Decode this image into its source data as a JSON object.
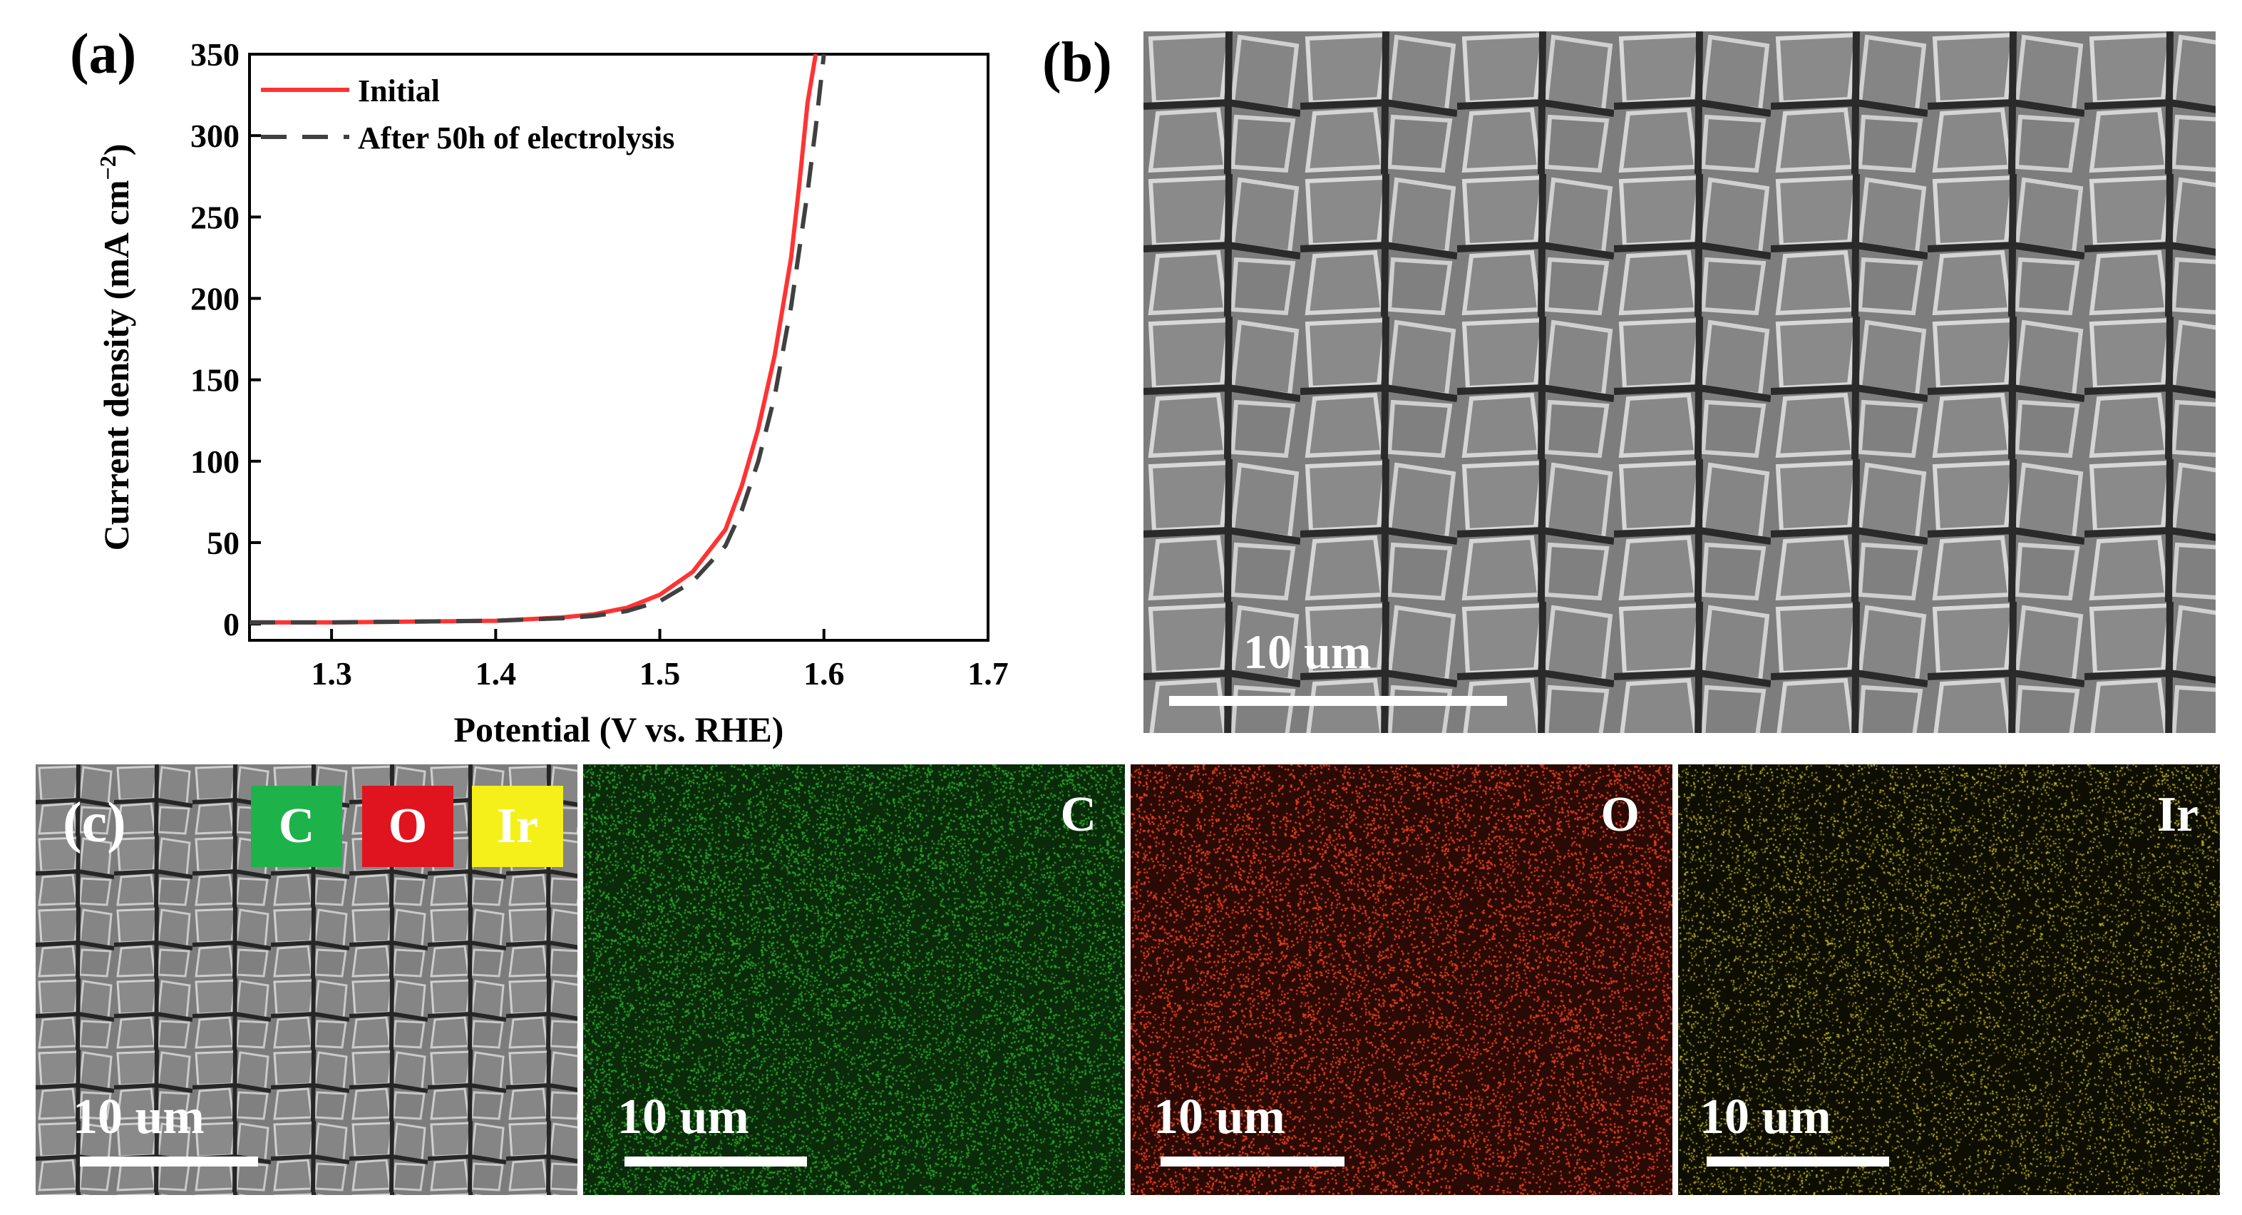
{
  "panels": {
    "a_label": "(a)",
    "b_label": "(b)",
    "c_label": "(c)"
  },
  "chart_data": {
    "type": "line",
    "xlabel": "Potential (V vs. RHE)",
    "ylabel": "Current density (mA cm",
    "ylabel_sup": "−2",
    "ylabel_close": ")",
    "xlim": [
      1.25,
      1.7
    ],
    "ylim": [
      -10,
      350
    ],
    "xticks": [
      1.3,
      1.4,
      1.5,
      1.6,
      1.7
    ],
    "xtick_labels": [
      "1.3",
      "1.4",
      "1.5",
      "1.6",
      "1.7"
    ],
    "yticks": [
      0,
      50,
      100,
      150,
      200,
      250,
      300,
      350
    ],
    "ytick_labels": [
      "0",
      "50",
      "100",
      "150",
      "200",
      "250",
      "300",
      "350"
    ],
    "legend_position": "top-left",
    "series": [
      {
        "name": "Initial",
        "color": "#ff3333",
        "dash": "solid",
        "x": [
          1.25,
          1.3,
          1.35,
          1.4,
          1.42,
          1.44,
          1.46,
          1.48,
          1.5,
          1.52,
          1.54,
          1.55,
          1.56,
          1.57,
          1.58,
          1.585,
          1.59,
          1.595
        ],
        "y": [
          1,
          1,
          1.5,
          2,
          3,
          4,
          6,
          10,
          18,
          32,
          58,
          85,
          120,
          165,
          225,
          270,
          320,
          350
        ]
      },
      {
        "name": "After 50h of electrolysis",
        "color": "#404040",
        "dash": "dashed",
        "x": [
          1.25,
          1.3,
          1.35,
          1.4,
          1.42,
          1.44,
          1.46,
          1.48,
          1.5,
          1.52,
          1.54,
          1.55,
          1.56,
          1.57,
          1.58,
          1.59,
          1.595,
          1.6
        ],
        "y": [
          1,
          1,
          1.5,
          2,
          2.8,
          3.5,
          5,
          8,
          14,
          26,
          48,
          70,
          100,
          140,
          195,
          265,
          305,
          350
        ]
      }
    ]
  },
  "sem_b": {
    "scale_label": "10 um"
  },
  "eds": {
    "legend": [
      {
        "label": "C",
        "color": "#1db34a"
      },
      {
        "label": "O",
        "color": "#e0141e"
      },
      {
        "label": "Ir",
        "color": "#f5f01a"
      }
    ],
    "panels": [
      {
        "element": "",
        "scale_label": "10 um"
      },
      {
        "element": "C",
        "scale_label": "10 um",
        "color": "#2ba52b"
      },
      {
        "element": "O",
        "scale_label": "10 um",
        "color": "#e8401c"
      },
      {
        "element": "Ir",
        "scale_label": "10 um",
        "color": "#c8c020"
      }
    ]
  }
}
